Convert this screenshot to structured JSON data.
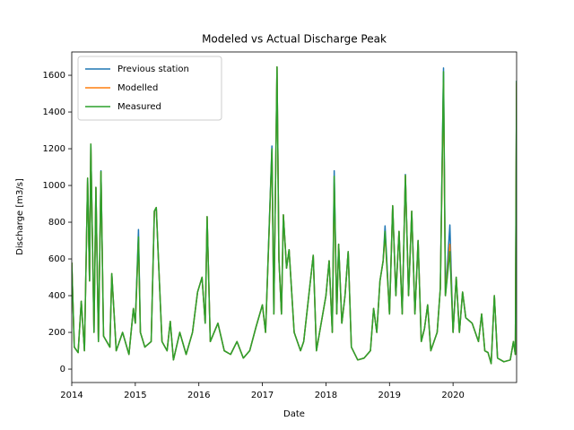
{
  "chart_data": {
    "type": "line",
    "title": "Modeled vs Actual Discharge Peak",
    "x_label": "Date",
    "y_label": "Discharge [m3/s]",
    "x": [
      2014.0,
      2014.04,
      2014.1,
      2014.15,
      2014.2,
      2014.25,
      2014.28,
      2014.3,
      2014.35,
      2014.38,
      2014.42,
      2014.46,
      2014.5,
      2014.6,
      2014.63,
      2014.7,
      2014.8,
      2014.9,
      2014.97,
      2015.0,
      2015.05,
      2015.08,
      2015.15,
      2015.25,
      2015.3,
      2015.33,
      2015.36,
      2015.42,
      2015.5,
      2015.55,
      2015.6,
      2015.7,
      2015.8,
      2015.9,
      2015.98,
      2016.05,
      2016.1,
      2016.13,
      2016.18,
      2016.3,
      2016.4,
      2016.5,
      2016.6,
      2016.7,
      2016.8,
      2016.9,
      2017.0,
      2017.05,
      2017.15,
      2017.18,
      2017.23,
      2017.26,
      2017.3,
      2017.33,
      2017.38,
      2017.42,
      2017.5,
      2017.6,
      2017.65,
      2017.8,
      2017.85,
      2017.9,
      2018.0,
      2018.05,
      2018.1,
      2018.13,
      2018.17,
      2018.2,
      2018.25,
      2018.3,
      2018.35,
      2018.4,
      2018.5,
      2018.6,
      2018.7,
      2018.75,
      2018.8,
      2018.85,
      2018.9,
      2018.93,
      2019.0,
      2019.05,
      2019.1,
      2019.15,
      2019.2,
      2019.25,
      2019.3,
      2019.35,
      2019.4,
      2019.45,
      2019.5,
      2019.55,
      2019.6,
      2019.65,
      2019.75,
      2019.8,
      2019.85,
      2019.88,
      2019.95,
      2020.0,
      2020.05,
      2020.1,
      2020.15,
      2020.2,
      2020.3,
      2020.4,
      2020.45,
      2020.5,
      2020.55,
      2020.6,
      2020.65,
      2020.7,
      2020.8,
      2020.9,
      2020.95,
      2020.98,
      2021.0
    ],
    "series": [
      {
        "name": "Previous station",
        "color": "#1f77b4",
        "values": [
          580,
          120,
          90,
          370,
          100,
          1040,
          480,
          1225,
          200,
          990,
          150,
          1080,
          180,
          120,
          520,
          100,
          200,
          80,
          330,
          250,
          760,
          200,
          120,
          150,
          860,
          880,
          630,
          150,
          100,
          260,
          50,
          200,
          80,
          200,
          420,
          500,
          250,
          830,
          150,
          250,
          100,
          80,
          150,
          60,
          100,
          230,
          350,
          200,
          1215,
          300,
          1645,
          600,
          300,
          840,
          550,
          650,
          200,
          100,
          150,
          620,
          100,
          200,
          400,
          590,
          200,
          1080,
          300,
          680,
          250,
          400,
          640,
          120,
          50,
          60,
          100,
          330,
          200,
          480,
          590,
          780,
          300,
          890,
          400,
          750,
          300,
          1060,
          400,
          860,
          300,
          700,
          150,
          220,
          350,
          100,
          200,
          440,
          1640,
          400,
          785,
          200,
          500,
          200,
          420,
          280,
          250,
          150,
          300,
          100,
          90,
          30,
          400,
          60,
          40,
          50,
          150,
          80,
          1570
        ]
      },
      {
        "name": "Modelled",
        "color": "#ff7f0e",
        "values": [
          580,
          120,
          90,
          370,
          100,
          1040,
          480,
          1225,
          200,
          990,
          150,
          1075,
          180,
          120,
          520,
          100,
          200,
          80,
          330,
          250,
          700,
          200,
          120,
          150,
          860,
          880,
          630,
          150,
          100,
          260,
          50,
          200,
          80,
          200,
          420,
          500,
          250,
          830,
          150,
          250,
          100,
          80,
          150,
          60,
          100,
          230,
          350,
          200,
          1180,
          300,
          1645,
          600,
          300,
          840,
          550,
          650,
          200,
          100,
          150,
          620,
          100,
          200,
          400,
          590,
          200,
          1000,
          300,
          680,
          250,
          400,
          640,
          120,
          50,
          60,
          100,
          330,
          200,
          480,
          590,
          730,
          300,
          890,
          400,
          750,
          300,
          1055,
          400,
          860,
          300,
          700,
          150,
          220,
          350,
          100,
          200,
          440,
          1560,
          400,
          680,
          200,
          500,
          200,
          420,
          280,
          250,
          150,
          300,
          100,
          90,
          30,
          400,
          60,
          40,
          50,
          150,
          80,
          1560
        ]
      },
      {
        "name": "Measured",
        "color": "#2ca02c",
        "values": [
          580,
          120,
          90,
          370,
          100,
          1040,
          480,
          1225,
          200,
          990,
          150,
          1075,
          180,
          120,
          520,
          100,
          200,
          80,
          330,
          250,
          720,
          200,
          120,
          150,
          860,
          880,
          630,
          150,
          100,
          260,
          50,
          200,
          80,
          200,
          420,
          500,
          250,
          830,
          150,
          250,
          100,
          80,
          150,
          60,
          100,
          230,
          350,
          200,
          1200,
          300,
          1645,
          600,
          300,
          840,
          550,
          650,
          200,
          100,
          150,
          620,
          100,
          200,
          400,
          590,
          200,
          1050,
          300,
          680,
          250,
          400,
          640,
          120,
          50,
          60,
          100,
          330,
          200,
          480,
          590,
          750,
          300,
          890,
          400,
          750,
          300,
          1055,
          400,
          860,
          300,
          700,
          150,
          220,
          350,
          100,
          200,
          440,
          1620,
          400,
          640,
          200,
          500,
          200,
          420,
          280,
          250,
          150,
          300,
          100,
          90,
          30,
          400,
          60,
          40,
          50,
          150,
          80,
          1570
        ]
      }
    ],
    "xlim": [
      2014,
      2021
    ],
    "xticks": [
      2014,
      2015,
      2016,
      2017,
      2018,
      2019,
      2020
    ],
    "ylim": [
      -73,
      1727
    ],
    "yticks": [
      0,
      200,
      400,
      600,
      800,
      1000,
      1200,
      1400,
      1600
    ],
    "legend": "upper left"
  }
}
